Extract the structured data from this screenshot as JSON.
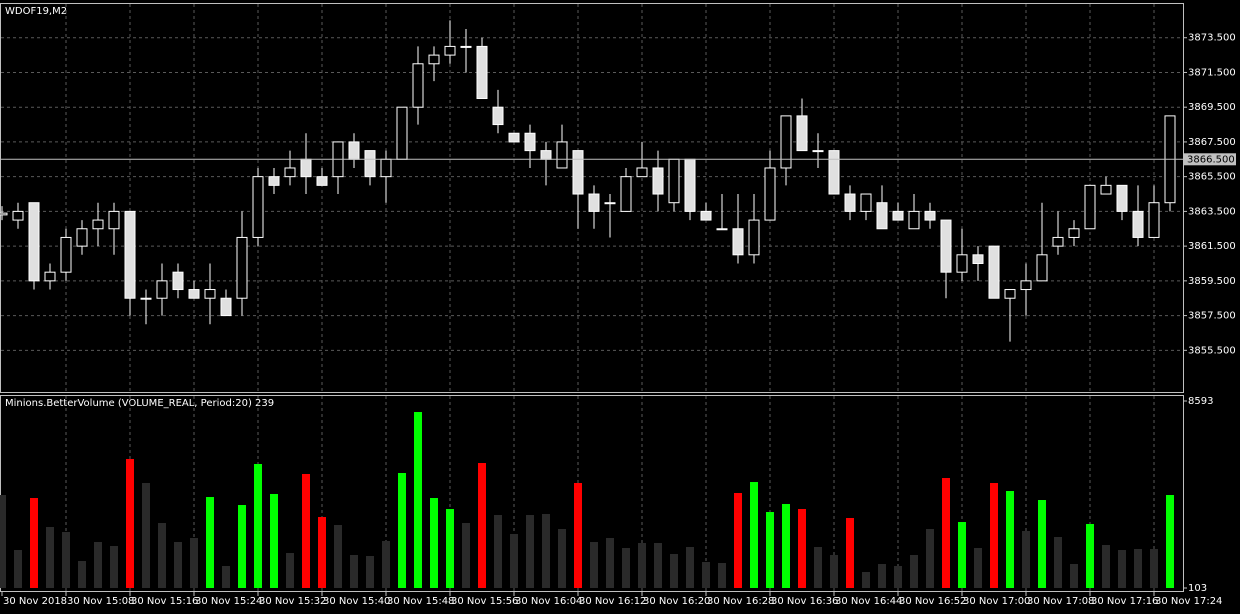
{
  "chart_data": [
    {
      "type": "candlestick",
      "title": "WDOF19,M2",
      "open": [
        3863.3,
        3863.0,
        3864.0,
        3859.5,
        3860.0,
        3861.5,
        3862.5,
        3862.5,
        3863.5,
        3858.5,
        3858.5,
        3860.0,
        3859.0,
        3858.5,
        3858.5,
        3858.5,
        3862.0,
        3865.5,
        3865.5,
        3866.5,
        3865.5,
        3865.5,
        3867.5,
        3867.0,
        3865.5,
        3866.5,
        3869.5,
        3872.0,
        3872.5,
        3873.0,
        3873.0,
        3869.5,
        3868.0,
        3868.0,
        3867.0,
        3866.0,
        3867.0,
        3864.5,
        3864.0,
        3863.5,
        3865.5,
        3866.0,
        3864.0,
        3866.5,
        3863.5,
        3862.5,
        3862.5,
        3861.0,
        3863.0,
        3866.0,
        3869.0,
        3867.0,
        3867.0,
        3864.5,
        3863.5,
        3864.0,
        3863.5,
        3862.5,
        3863.5,
        3863.0,
        3860.0,
        3861.0,
        3861.5,
        3858.5,
        3859.0,
        3859.5,
        3861.5,
        3862.0,
        3862.5,
        3864.5,
        3865.0,
        3863.5,
        3862.0,
        3864.0
      ],
      "high": [
        3863.8,
        3864.0,
        3864.0,
        3860.5,
        3862.5,
        3863.0,
        3864.0,
        3864.0,
        3863.5,
        3859.0,
        3860.5,
        3860.5,
        3859.5,
        3860.5,
        3859.0,
        3863.5,
        3866.0,
        3866.0,
        3867.0,
        3868.0,
        3866.0,
        3867.5,
        3868.0,
        3867.0,
        3867.0,
        3869.5,
        3873.0,
        3873.0,
        3874.5,
        3874.0,
        3873.5,
        3870.5,
        3868.0,
        3868.5,
        3867.5,
        3868.5,
        3867.0,
        3865.0,
        3864.5,
        3866.0,
        3867.5,
        3867.0,
        3866.5,
        3866.5,
        3864.0,
        3864.5,
        3864.5,
        3864.5,
        3867.0,
        3869.0,
        3870.0,
        3868.0,
        3867.0,
        3865.0,
        3864.5,
        3865.0,
        3864.0,
        3864.5,
        3864.0,
        3863.0,
        3862.5,
        3861.5,
        3861.5,
        3859.0,
        3860.5,
        3864.0,
        3863.5,
        3863.0,
        3865.0,
        3865.5,
        3865.0,
        3865.0,
        3865.0,
        3869.0
      ],
      "low": [
        3863.0,
        3862.5,
        3859.0,
        3859.0,
        3859.5,
        3861.0,
        3861.5,
        3861.0,
        3857.5,
        3857.0,
        3857.5,
        3858.5,
        3858.5,
        3857.0,
        3857.5,
        3857.5,
        3861.5,
        3864.5,
        3865.0,
        3864.5,
        3865.0,
        3864.5,
        3866.0,
        3865.0,
        3864.0,
        3866.5,
        3868.5,
        3871.0,
        3872.0,
        3871.5,
        3870.0,
        3868.0,
        3867.5,
        3866.0,
        3865.0,
        3866.0,
        3862.5,
        3862.5,
        3862.0,
        3863.5,
        3865.5,
        3863.5,
        3863.5,
        3863.0,
        3863.0,
        3862.5,
        3860.5,
        3860.5,
        3863.0,
        3865.0,
        3867.0,
        3866.0,
        3864.5,
        3863.0,
        3863.0,
        3862.5,
        3863.0,
        3862.5,
        3862.5,
        3858.5,
        3859.5,
        3859.5,
        3858.5,
        3856.0,
        3857.5,
        3859.5,
        3861.0,
        3861.5,
        3862.5,
        3864.5,
        3863.0,
        3861.5,
        3862.0,
        3863.5
      ],
      "close": [
        3863.4,
        3863.5,
        3859.5,
        3860.0,
        3862.0,
        3862.5,
        3863.0,
        3863.5,
        3858.5,
        3858.5,
        3859.5,
        3859.0,
        3858.5,
        3859.0,
        3857.5,
        3862.0,
        3865.5,
        3865.0,
        3866.0,
        3865.5,
        3865.0,
        3867.5,
        3866.5,
        3865.5,
        3866.5,
        3869.5,
        3872.0,
        3872.5,
        3873.0,
        3873.0,
        3870.0,
        3868.5,
        3867.5,
        3867.0,
        3866.5,
        3867.5,
        3864.5,
        3863.5,
        3864.0,
        3865.5,
        3866.0,
        3864.5,
        3866.5,
        3863.5,
        3863.0,
        3862.5,
        3861.0,
        3863.0,
        3866.0,
        3869.0,
        3867.0,
        3867.0,
        3864.5,
        3863.5,
        3864.5,
        3862.5,
        3863.0,
        3863.5,
        3863.0,
        3860.0,
        3861.0,
        3860.5,
        3858.5,
        3859.0,
        3859.5,
        3861.0,
        3862.0,
        3862.5,
        3865.0,
        3865.0,
        3863.5,
        3862.0,
        3864.0,
        3869.0
      ],
      "ylim": [
        3853.1,
        3875.5
      ],
      "yticks": [
        {
          "value": 3855.5,
          "label": "3855.500"
        },
        {
          "value": 3857.5,
          "label": "3857.500"
        },
        {
          "value": 3859.5,
          "label": "3859.500"
        },
        {
          "value": 3861.5,
          "label": "3861.500"
        },
        {
          "value": 3863.5,
          "label": "3863.500"
        },
        {
          "value": 3865.5,
          "label": "3865.500"
        },
        {
          "value": 3867.5,
          "label": "3867.500"
        },
        {
          "value": 3869.5,
          "label": "3869.500"
        },
        {
          "value": 3871.5,
          "label": "3871.500"
        },
        {
          "value": 3873.5,
          "label": "3873.500"
        }
      ],
      "price_line": {
        "value": 3866.5,
        "label": "3866.500"
      },
      "grid": true
    },
    {
      "type": "bar",
      "title": "Minions.BetterVolume (VOLUME_REAL, Period:20) 239",
      "categories": [
        "30 Nov 2018",
        null,
        null,
        null,
        "30 Nov 15:08",
        null,
        null,
        null,
        "30 Nov 15:16",
        null,
        null,
        null,
        "30 Nov 15:24",
        null,
        null,
        null,
        "30 Nov 15:32",
        null,
        null,
        null,
        "30 Nov 15:40",
        null,
        null,
        null,
        "30 Nov 15:48",
        null,
        null,
        null,
        "30 Nov 15:56",
        null,
        null,
        null,
        "30 Nov 16:04",
        null,
        null,
        null,
        "30 Nov 16:12",
        null,
        null,
        null,
        "30 Nov 16:20",
        null,
        null,
        null,
        "30 Nov 16:28",
        null,
        null,
        null,
        "30 Nov 16:36",
        null,
        null,
        null,
        "30 Nov 16:44",
        null,
        null,
        null,
        "30 Nov 16:52",
        null,
        null,
        null,
        "30 Nov 17:00",
        null,
        null,
        null,
        "30 Nov 17:08",
        null,
        null,
        null,
        "30 Nov 17:16",
        null,
        null,
        null,
        "30 Nov 17:24",
        null
      ],
      "values": [
        4325,
        1828,
        4189,
        2872,
        2645,
        1329,
        2191,
        2010,
        5960,
        4870,
        3054,
        2191,
        2373,
        4234,
        1102,
        3871,
        5733,
        4371,
        1692,
        5279,
        3326,
        2963,
        1601,
        1556,
        2237,
        5324,
        8093,
        4189,
        3690,
        3054,
        5778,
        3417,
        2555,
        3417,
        3463,
        2782,
        4870,
        2191,
        2373,
        1919,
        2146,
        2146,
        1646,
        1964,
        1284,
        1238,
        4416,
        4915,
        3553,
        3917,
        3690,
        1964,
        1601,
        3281,
        829,
        1193,
        1102,
        1601,
        2782,
        5097,
        3099,
        1919,
        4870,
        4507,
        2691,
        4098,
        2418,
        1193,
        3009,
        2055,
        1828,
        1874,
        1874,
        4325
      ],
      "colors": [
        "#2a2a2a",
        "#2a2a2a",
        "#ff0000",
        "#2a2a2a",
        "#2a2a2a",
        "#2a2a2a",
        "#2a2a2a",
        "#2a2a2a",
        "#ff0000",
        "#2a2a2a",
        "#2a2a2a",
        "#2a2a2a",
        "#2a2a2a",
        "#00ff00",
        "#2a2a2a",
        "#00ff00",
        "#00ff00",
        "#00ff00",
        "#2a2a2a",
        "#ff0000",
        "#ff0000",
        "#2a2a2a",
        "#2a2a2a",
        "#2a2a2a",
        "#2a2a2a",
        "#00ff00",
        "#00ff00",
        "#00ff00",
        "#00ff00",
        "#2a2a2a",
        "#ff0000",
        "#2a2a2a",
        "#2a2a2a",
        "#2a2a2a",
        "#2a2a2a",
        "#2a2a2a",
        "#ff0000",
        "#2a2a2a",
        "#2a2a2a",
        "#2a2a2a",
        "#2a2a2a",
        "#2a2a2a",
        "#2a2a2a",
        "#2a2a2a",
        "#2a2a2a",
        "#2a2a2a",
        "#ff0000",
        "#00ff00",
        "#00ff00",
        "#00ff00",
        "#ff0000",
        "#2a2a2a",
        "#2a2a2a",
        "#ff0000",
        "#2a2a2a",
        "#2a2a2a",
        "#2a2a2a",
        "#2a2a2a",
        "#2a2a2a",
        "#ff0000",
        "#00ff00",
        "#2a2a2a",
        "#ff0000",
        "#00ff00",
        "#2a2a2a",
        "#00ff00",
        "#2a2a2a",
        "#2a2a2a",
        "#00ff00",
        "#2a2a2a",
        "#2a2a2a",
        "#2a2a2a",
        "#2a2a2a",
        "#00ff00"
      ],
      "ylim": [
        103,
        8593
      ],
      "yticks": [
        103,
        8593
      ]
    }
  ]
}
